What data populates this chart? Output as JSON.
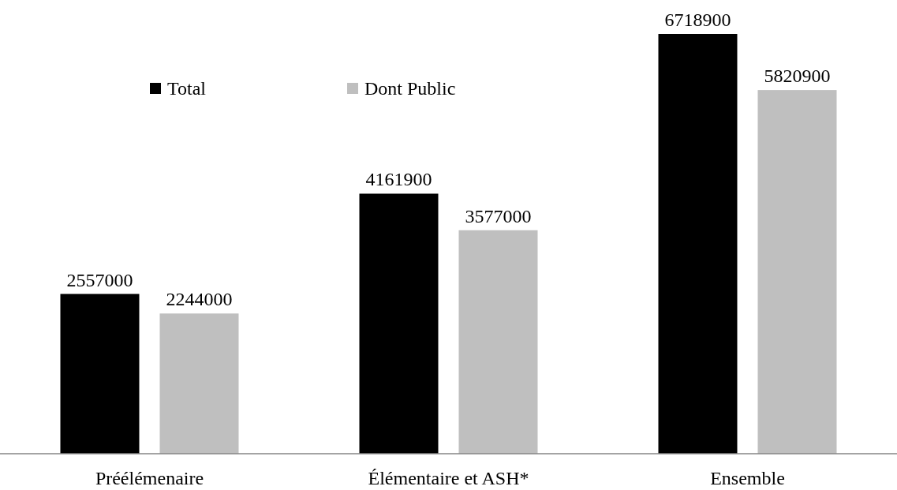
{
  "chart_data": {
    "type": "bar",
    "categories": [
      "Préélémenaire",
      "Élémentaire et ASH*",
      "Ensemble"
    ],
    "series": [
      {
        "name": "Total",
        "color": "#000000",
        "values": [
          2557000,
          4161900,
          6718900
        ]
      },
      {
        "name": "Dont Public",
        "color": "#bfbfbf",
        "values": [
          2244000,
          3577000,
          5820900
        ]
      }
    ],
    "data_labels": true,
    "legend": "top left"
  }
}
